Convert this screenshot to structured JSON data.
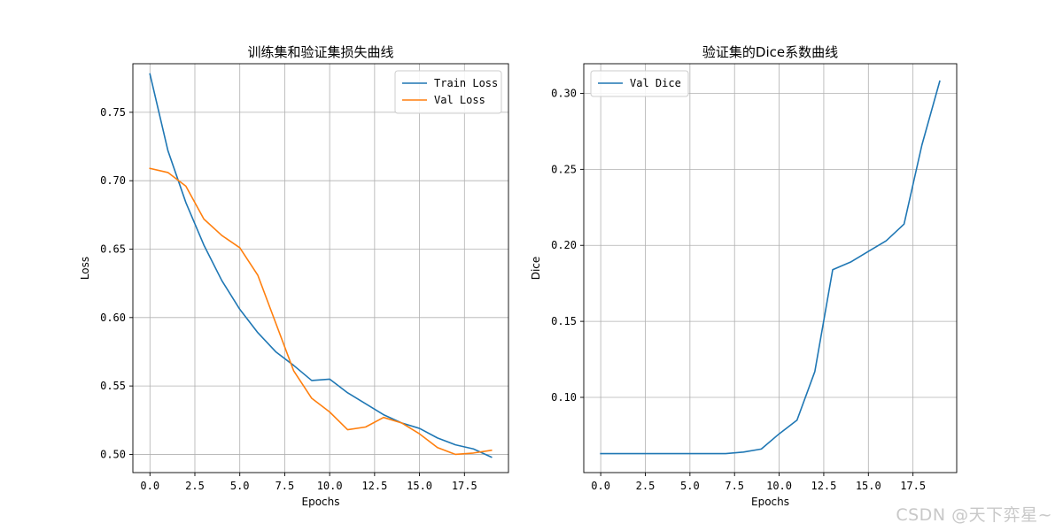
{
  "chart_data": [
    {
      "type": "line",
      "title": "训练集和验证集损失曲线",
      "xlabel": "Epochs",
      "ylabel": "Loss",
      "xlim": [
        -0.95,
        19.95
      ],
      "ylim": [
        0.4867,
        0.7855
      ],
      "xticks": [
        0,
        2.5,
        5,
        7.5,
        10,
        12.5,
        15,
        17.5
      ],
      "xtick_labels": [
        "0.0",
        "2.5",
        "5.0",
        "7.5",
        "10.0",
        "12.5",
        "15.0",
        "17.5"
      ],
      "yticks": [
        0.5,
        0.55,
        0.6,
        0.65,
        0.7,
        0.75
      ],
      "ytick_labels": [
        "0.50",
        "0.55",
        "0.60",
        "0.65",
        "0.70",
        "0.75"
      ],
      "grid": true,
      "legend_position": "top-right",
      "x": [
        0,
        1,
        2,
        3,
        4,
        5,
        6,
        7,
        8,
        9,
        10,
        11,
        12,
        13,
        14,
        15,
        16,
        17,
        18,
        19
      ],
      "series": [
        {
          "name": "Train Loss",
          "color": "#1f77b4",
          "values": [
            0.778,
            0.722,
            0.684,
            0.653,
            0.627,
            0.606,
            0.589,
            0.575,
            0.565,
            0.554,
            0.555,
            0.545,
            0.537,
            0.529,
            0.523,
            0.519,
            0.512,
            0.507,
            0.504,
            0.498
          ]
        },
        {
          "name": "Val Loss",
          "color": "#ff7f0e",
          "values": [
            0.709,
            0.706,
            0.696,
            0.672,
            0.66,
            0.651,
            0.631,
            0.596,
            0.561,
            0.541,
            0.531,
            0.518,
            0.52,
            0.527,
            0.523,
            0.515,
            0.505,
            0.5,
            0.501,
            0.503
          ]
        }
      ]
    },
    {
      "type": "line",
      "title": "验证集的Dice系数曲线",
      "xlabel": "Epochs",
      "ylabel": "Dice",
      "xlim": [
        -0.95,
        19.95
      ],
      "ylim": [
        0.0505,
        0.3195
      ],
      "xticks": [
        0,
        2.5,
        5,
        7.5,
        10,
        12.5,
        15,
        17.5
      ],
      "xtick_labels": [
        "0.0",
        "2.5",
        "5.0",
        "7.5",
        "10.0",
        "12.5",
        "15.0",
        "17.5"
      ],
      "yticks": [
        0.1,
        0.15,
        0.2,
        0.25,
        0.3
      ],
      "ytick_labels": [
        "0.10",
        "0.15",
        "0.20",
        "0.25",
        "0.30"
      ],
      "grid": true,
      "legend_position": "top-left",
      "x": [
        0,
        1,
        2,
        3,
        4,
        5,
        6,
        7,
        8,
        9,
        10,
        11,
        12,
        13,
        14,
        15,
        16,
        17,
        18,
        19
      ],
      "series": [
        {
          "name": "Val Dice",
          "color": "#1f77b4",
          "values": [
            0.063,
            0.063,
            0.063,
            0.063,
            0.063,
            0.063,
            0.063,
            0.063,
            0.064,
            0.066,
            0.076,
            0.085,
            0.117,
            0.184,
            0.189,
            0.196,
            0.203,
            0.214,
            0.266,
            0.308
          ]
        }
      ]
    }
  ],
  "watermark": "CSDN @天下弈星~"
}
